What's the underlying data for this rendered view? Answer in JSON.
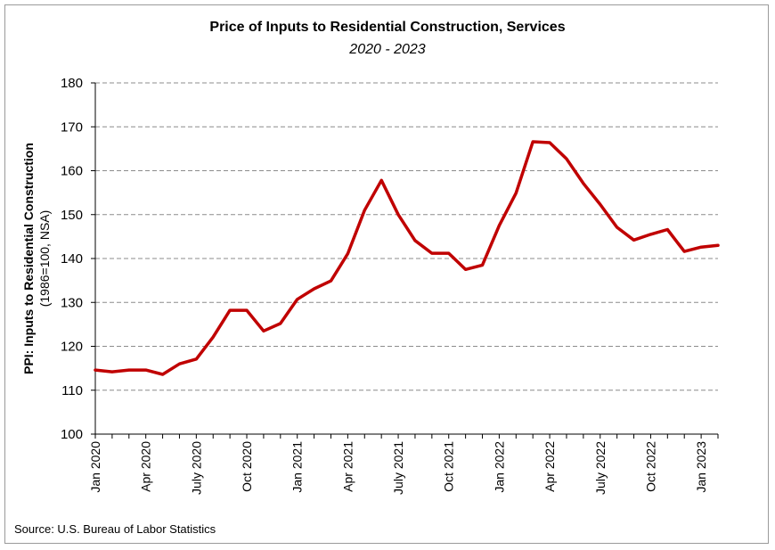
{
  "chart_data": {
    "type": "line",
    "title": "Price of Inputs to Residential Construction, Services",
    "subtitle": "2020 - 2023",
    "ylabel": "PPI: Inputs to Residential Construction",
    "ylabel_sub": "(1986=100, NSA)",
    "xlabel": "",
    "ylim": [
      100,
      180
    ],
    "yticks": [
      100,
      110,
      120,
      130,
      140,
      150,
      160,
      170,
      180
    ],
    "grid": "horizontal-dashed",
    "legend": "none",
    "x": [
      "Jan 2020",
      "Feb 2020",
      "Mar 2020",
      "Apr 2020",
      "May 2020",
      "Jun 2020",
      "Jul 2020",
      "Aug 2020",
      "Sep 2020",
      "Oct 2020",
      "Nov 2020",
      "Dec 2020",
      "Jan 2021",
      "Feb 2021",
      "Mar 2021",
      "Apr 2021",
      "May 2021",
      "Jun 2021",
      "Jul 2021",
      "Aug 2021",
      "Sep 2021",
      "Oct 2021",
      "Nov 2021",
      "Dec 2021",
      "Jan 2022",
      "Feb 2022",
      "Mar 2022",
      "Apr 2022",
      "May 2022",
      "Jun 2022",
      "Jul 2022",
      "Aug 2022",
      "Sep 2022",
      "Oct 2022",
      "Nov 2022",
      "Dec 2022",
      "Jan 2023",
      "Feb 2023"
    ],
    "xtick_labels": [
      {
        "index": 0,
        "label": "Jan 2020"
      },
      {
        "index": 3,
        "label": "Apr 2020"
      },
      {
        "index": 6,
        "label": "July 2020"
      },
      {
        "index": 9,
        "label": "Oct 2020"
      },
      {
        "index": 12,
        "label": "Jan 2021"
      },
      {
        "index": 15,
        "label": "Apr 2021"
      },
      {
        "index": 18,
        "label": "July 2021"
      },
      {
        "index": 21,
        "label": "Oct 2021"
      },
      {
        "index": 24,
        "label": "Jan 2022"
      },
      {
        "index": 27,
        "label": "Apr 2022"
      },
      {
        "index": 30,
        "label": "July 2022"
      },
      {
        "index": 33,
        "label": "Oct 2022"
      },
      {
        "index": 36,
        "label": "Jan 2023"
      }
    ],
    "series": [
      {
        "color": "#C00000",
        "values": [
          114.6,
          114.2,
          114.6,
          114.6,
          113.6,
          116.0,
          117.1,
          122.1,
          128.2,
          128.2,
          123.5,
          125.2,
          130.7,
          133.1,
          134.9,
          141.1,
          151.0,
          157.8,
          150.0,
          144.1,
          141.2,
          141.2,
          137.5,
          138.5,
          147.5,
          154.9,
          166.6,
          166.4,
          162.7,
          157.1,
          152.3,
          147.1,
          144.2,
          145.5,
          146.6,
          141.6,
          142.6,
          143.0
        ]
      }
    ]
  },
  "source": "Source: U.S. Bureau of Labor Statistics"
}
